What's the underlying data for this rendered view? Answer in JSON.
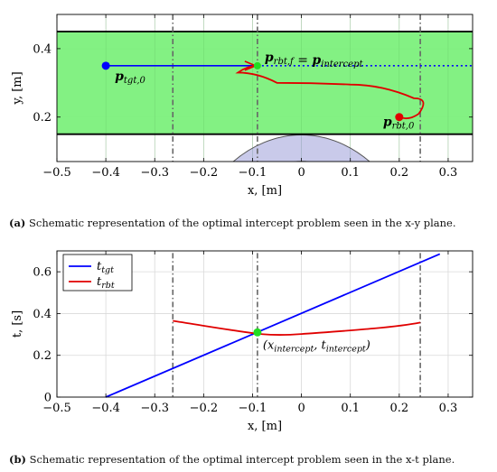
{
  "colors": {
    "band": "#7CF07C",
    "workspace": "#9D9FD8",
    "target": "#0000FF",
    "robot": "#E00000",
    "intercept": "#22DD22",
    "dashed": "#666666"
  },
  "captions": {
    "a_tag": "(a)",
    "a_text": " Schematic representation of the optimal intercept problem seen in the x-y plane.",
    "b_tag": "(b)",
    "b_text": " Schematic representation of the optimal intercept problem seen in the x-t plane."
  },
  "chart_data": [
    {
      "type": "line",
      "xlabel": "x, [m]",
      "ylabel": "y, [m]",
      "xlim": [
        -0.5,
        0.35
      ],
      "ylim": [
        0.07,
        0.5
      ],
      "xticks": [
        -0.5,
        -0.4,
        -0.3,
        -0.2,
        -0.1,
        0,
        0.1,
        0.2,
        0.3
      ],
      "xtick_labels": [
        "−0.5",
        "−0.4",
        "−0.3",
        "−0.2",
        "−0.1",
        "0",
        "0.1",
        "0.2",
        "0.3"
      ],
      "yticks": [
        0.2,
        0.4
      ],
      "ytick_labels": [
        "0.2",
        "0.4"
      ],
      "grid": true,
      "band_y": [
        0.15,
        0.45
      ],
      "vertical_dashed_x": [
        -0.263,
        -0.09,
        0.243
      ],
      "labels": {
        "tgt": "p",
        "tgt_sub": "tgt,0",
        "rbt_start": "p",
        "rbt_start_sub": "rbt,0",
        "final_p": "p",
        "final_sub": "rbt,f",
        "final_eq": " = ",
        "final_p2": "p",
        "final_sub2": "intercept"
      },
      "target_start": [
        -0.4,
        0.35
      ],
      "intercept_point": [
        -0.09,
        0.35
      ],
      "robot_start": [
        0.2,
        0.2
      ],
      "robot_path": [
        [
          0.2,
          0.2
        ],
        [
          0.24,
          0.21
        ],
        [
          0.23,
          0.255
        ],
        [
          0.1,
          0.295
        ],
        [
          -0.05,
          0.3
        ],
        [
          -0.13,
          0.33
        ],
        [
          -0.09,
          0.35
        ]
      ]
    },
    {
      "type": "line",
      "xlabel": "x, [m]",
      "ylabel": "t, [s]",
      "xlim": [
        -0.5,
        0.35
      ],
      "ylim": [
        0,
        0.7
      ],
      "xticks": [
        -0.5,
        -0.4,
        -0.3,
        -0.2,
        -0.1,
        0,
        0.1,
        0.2,
        0.3
      ],
      "xtick_labels": [
        "−0.5",
        "−0.4",
        "−0.3",
        "−0.2",
        "−0.1",
        "0",
        "0.1",
        "0.2",
        "0.3"
      ],
      "yticks": [
        0,
        0.2,
        0.4,
        0.6
      ],
      "ytick_labels": [
        "0",
        "0.2",
        "0.4",
        "0.6"
      ],
      "grid": true,
      "vertical_dashed_x": [
        -0.263,
        -0.09,
        0.243
      ],
      "legend_position": "top-left",
      "series": [
        {
          "name": "t",
          "name_sub": "tgt",
          "color": "#0000FF",
          "x": [
            -0.4,
            0.283
          ],
          "y": [
            0,
            0.685
          ]
        },
        {
          "name": "t",
          "name_sub": "rbt",
          "color": "#E00000",
          "x": [
            -0.263,
            -0.09,
            0.0,
            0.243
          ],
          "y": [
            0.365,
            0.31,
            0.302,
            0.357
          ]
        }
      ],
      "intercept_point": [
        -0.09,
        0.31
      ],
      "intercept_label": "(x",
      "intercept_sub1": "intercept",
      "intercept_mid": ", t",
      "intercept_sub2": "intercept",
      "intercept_close": ")"
    }
  ]
}
